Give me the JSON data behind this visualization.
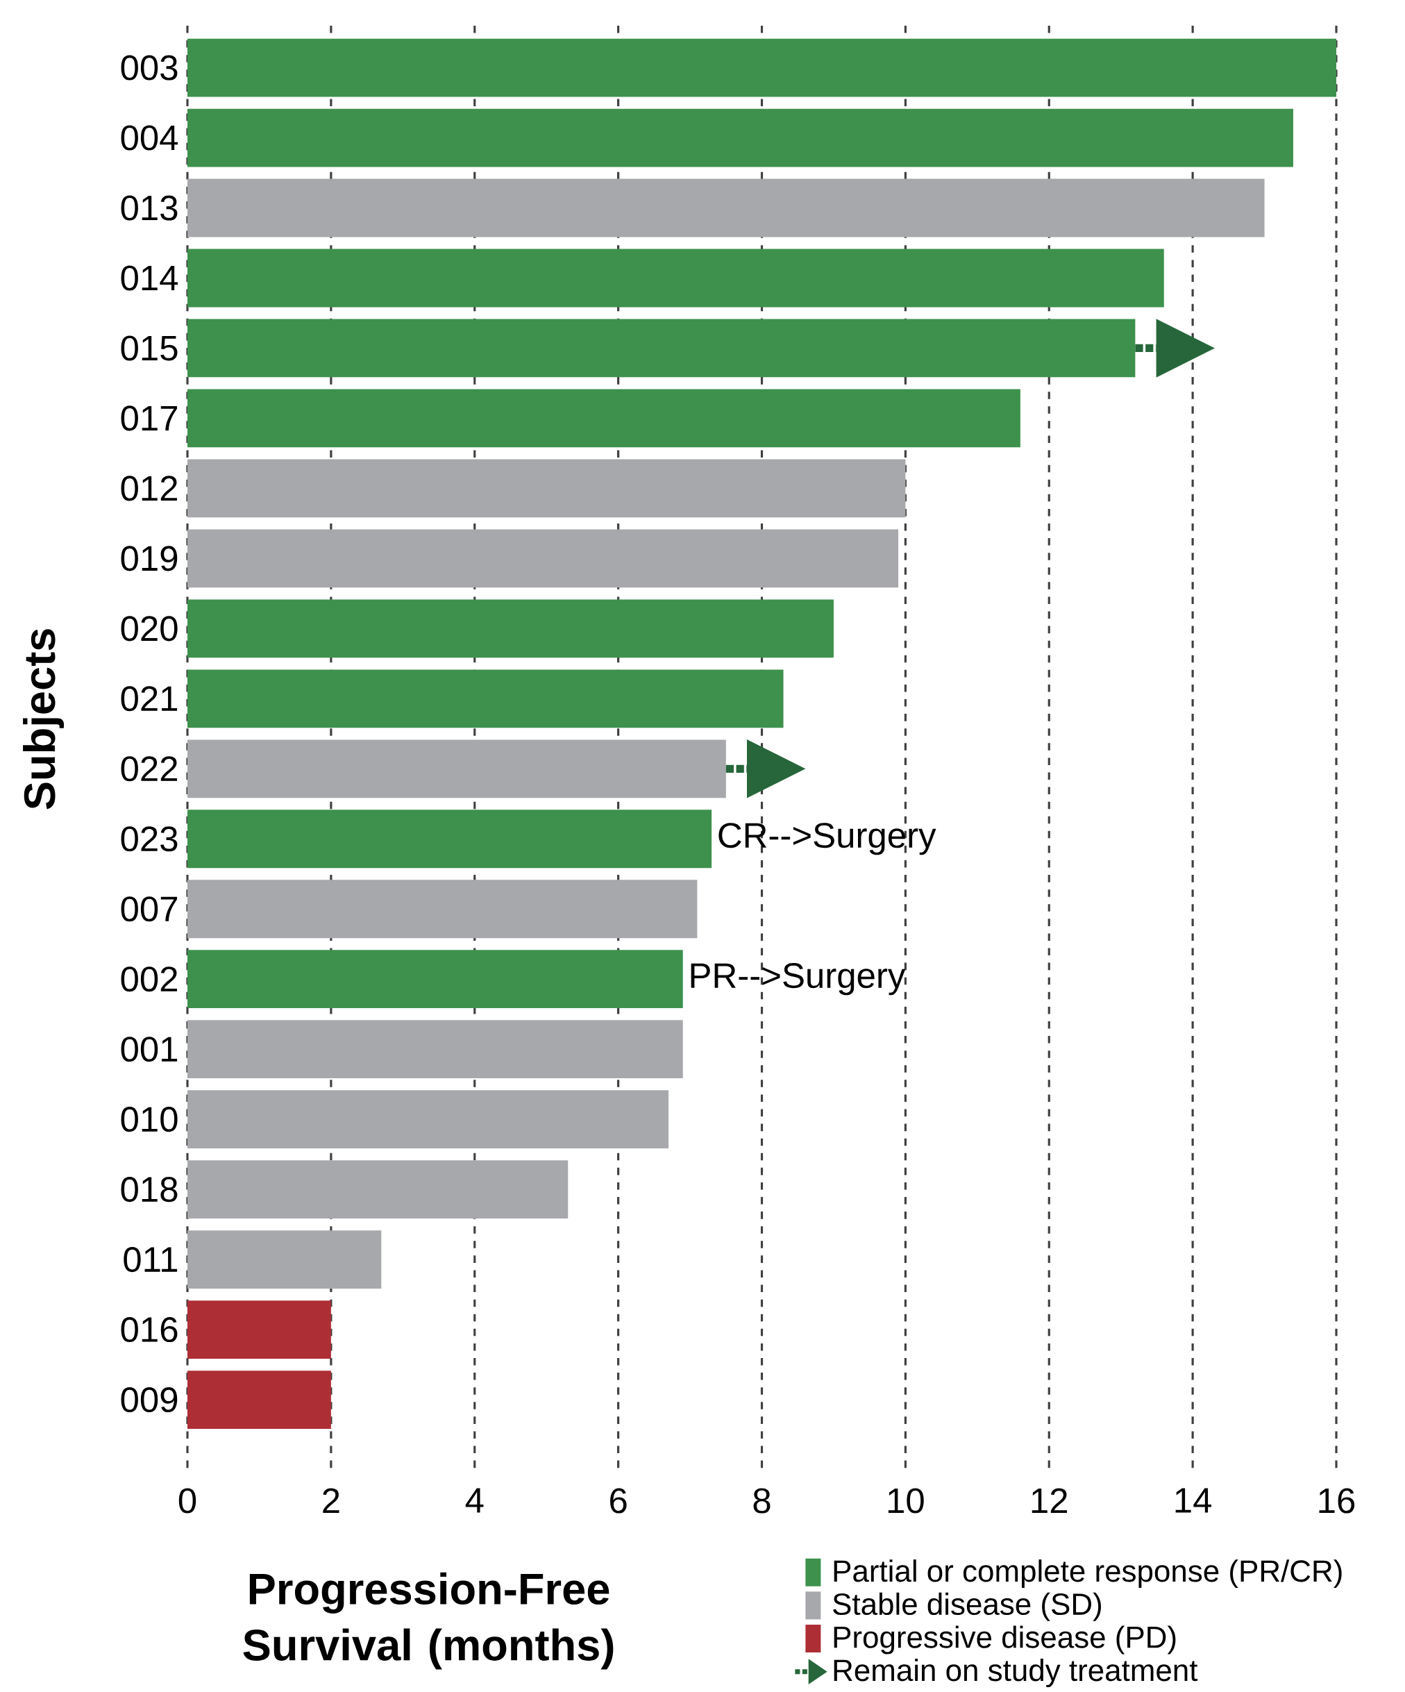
{
  "chart_data": {
    "type": "bar",
    "orientation": "horizontal",
    "xlabel": "Progression-Free Survival (months)",
    "ylabel": "Subjects",
    "categories": [
      "003",
      "004",
      "013",
      "014",
      "015",
      "017",
      "012",
      "019",
      "020",
      "021",
      "022",
      "023",
      "007",
      "002",
      "001",
      "010",
      "018",
      "011",
      "016",
      "009"
    ],
    "series": [
      {
        "name": "Partial or complete response (PR/CR)",
        "color": "#3d914c",
        "values": [
          16.0,
          15.4,
          null,
          13.6,
          13.2,
          11.6,
          null,
          null,
          9.0,
          8.3,
          null,
          7.3,
          null,
          6.9,
          null,
          null,
          null,
          null,
          null,
          null
        ]
      },
      {
        "name": "Stable disease (SD)",
        "color": "#a7a8ab",
        "values": [
          null,
          null,
          15.0,
          null,
          null,
          null,
          10.0,
          9.9,
          null,
          null,
          7.5,
          null,
          7.1,
          null,
          6.9,
          6.7,
          5.3,
          2.7,
          null,
          null
        ]
      },
      {
        "name": "Progressive disease (PD)",
        "color": "#ae2e35",
        "values": [
          null,
          null,
          null,
          null,
          null,
          null,
          null,
          null,
          null,
          null,
          null,
          null,
          null,
          null,
          null,
          null,
          null,
          null,
          2.0,
          2.0
        ]
      },
      {
        "name": "Remain on study treatment",
        "type": "scatter",
        "marker": "triangle",
        "line_style": "dotted",
        "color": "#26663a",
        "values": [
          null,
          null,
          null,
          null,
          13.9,
          null,
          null,
          null,
          null,
          null,
          8.2,
          null,
          null,
          null,
          null,
          null,
          null,
          null,
          null,
          null
        ]
      }
    ],
    "xlim": [
      0,
      16
    ],
    "xticks": [
      0,
      2,
      4,
      6,
      8,
      10,
      12,
      14,
      16
    ],
    "grid": "x",
    "legend": "bottom right",
    "annotations": [
      {
        "text": "CR-->Surgery",
        "x": 7.3,
        "y": "023"
      },
      {
        "text": "PR-->Surgery",
        "x": 6.9,
        "y": "002"
      }
    ]
  }
}
